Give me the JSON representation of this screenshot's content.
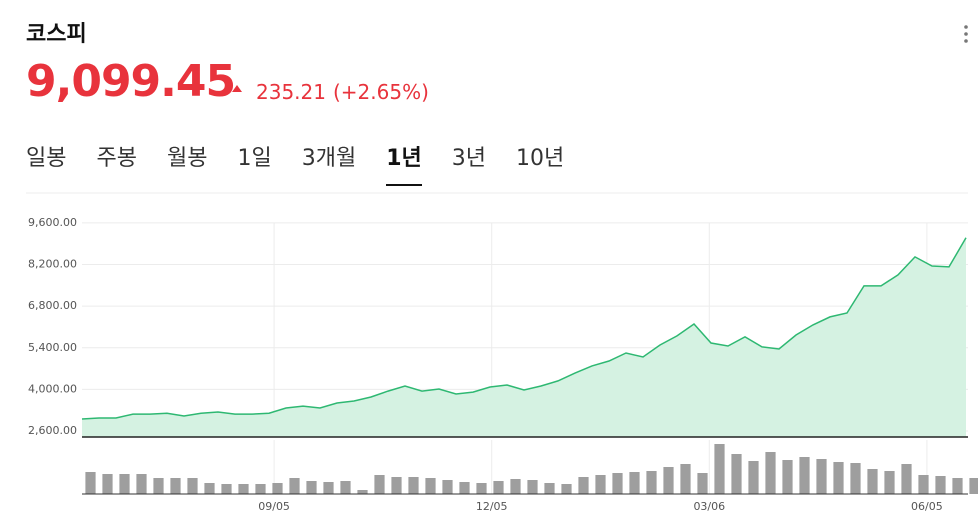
{
  "header": {
    "title": "코스피",
    "price": "9,099.45",
    "change": "235.21",
    "change_pct": "(+2.65%)"
  },
  "tabs": {
    "items": [
      "일봉",
      "주봉",
      "월봉",
      "1일",
      "3개월",
      "1년",
      "3년",
      "10년"
    ],
    "active": 5
  },
  "chart_data": [
    {
      "type": "line",
      "xlim": [
        0,
        52
      ],
      "ylim": [
        2400,
        10000
      ],
      "yticks": [
        {
          "value": 2600,
          "label": "2,600.00"
        },
        {
          "value": 4000,
          "label": "4,000.00"
        },
        {
          "value": 5400,
          "label": "5,400.00"
        },
        {
          "value": 6800,
          "label": "6,800.00"
        },
        {
          "value": 8200,
          "label": "8,200.00"
        },
        {
          "value": 9600,
          "label": "9,600.00"
        }
      ],
      "xticks": [
        {
          "value": 11.3,
          "label": "09/05"
        },
        {
          "value": 24.1,
          "label": "12/05"
        },
        {
          "value": 36.9,
          "label": "03/06"
        },
        {
          "value": 49.7,
          "label": "06/05"
        }
      ],
      "grid": true,
      "series": [
        {
          "color": "#2eb872",
          "fill": "#d5f2e2",
          "values": [
            3005,
            3040,
            3040,
            3170,
            3170,
            3200,
            3105,
            3200,
            3240,
            3170,
            3170,
            3200,
            3375,
            3440,
            3375,
            3545,
            3610,
            3745,
            3945,
            4115,
            3945,
            4015,
            3845,
            3910,
            4080,
            4150,
            3980,
            4115,
            4285,
            4550,
            4790,
            4955,
            5225,
            5090,
            5495,
            5800,
            6200,
            5560,
            5460,
            5765,
            5430,
            5360,
            5830,
            6170,
            6440,
            6570,
            7480,
            7480,
            7850,
            8455,
            8150,
            8120,
            9099.45
          ]
        }
      ]
    },
    {
      "type": "bar",
      "xlim": [
        0,
        52
      ],
      "ylim": [
        0,
        55
      ],
      "color": "#9e9e9e",
      "values": [
        22,
        20,
        20,
        20,
        16,
        16,
        16,
        11,
        10,
        10,
        10,
        11,
        16,
        13,
        12,
        13,
        4,
        19,
        17,
        17,
        16,
        14,
        12,
        11,
        13,
        15,
        14,
        11,
        10,
        17,
        19,
        21,
        22,
        23,
        27,
        30,
        21,
        50,
        40,
        33,
        42,
        34,
        37,
        35,
        32,
        31,
        25,
        23,
        30,
        19,
        18,
        16,
        16
      ]
    }
  ]
}
